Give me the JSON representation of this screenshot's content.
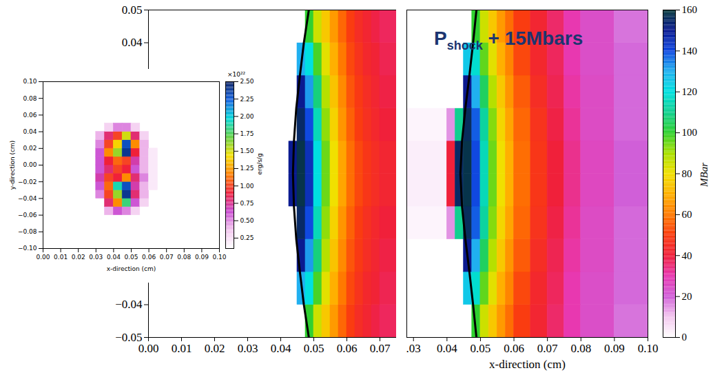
{
  "chart_data": [
    {
      "type": "heatmap",
      "xlim": [
        0,
        0.075
      ],
      "ylim": [
        -0.05,
        0.05
      ],
      "xticks": [
        {
          "value": 0,
          "label": "0.00"
        },
        {
          "value": 0.01,
          "label": "0.01"
        },
        {
          "value": 0.02,
          "label": "0.02"
        },
        {
          "value": 0.03,
          "label": "0.03"
        },
        {
          "value": 0.04,
          "label": "0.04"
        },
        {
          "value": 0.05,
          "label": "0.05"
        },
        {
          "value": 0.06,
          "label": "0.06"
        },
        {
          "value": 0.07,
          "label": "0.07"
        }
      ],
      "yticks": [
        {
          "value": -0.05,
          "label": "−0.05"
        },
        {
          "value": -0.04,
          "label": "−0.04"
        },
        {
          "value": 0.04,
          "label": "0.04"
        },
        {
          "value": 0.05,
          "label": "0.05"
        }
      ],
      "cells": {
        "x_edges": [
          0,
          0.0425,
          0.045,
          0.0475,
          0.05,
          0.0525,
          0.055,
          0.0575,
          0.06,
          0.0625,
          0.065,
          0.0675,
          0.07,
          0.075
        ],
        "y_edges": [
          -0.05,
          -0.04,
          -0.03,
          -0.02,
          -0.01,
          0,
          0.01,
          0.02,
          0.03,
          0.04,
          0.05
        ],
        "values": [
          [
            0,
            0,
            0,
            100,
            85,
            75,
            66,
            57,
            50,
            45,
            42,
            39,
            37
          ],
          [
            0,
            0,
            130,
            120,
            98,
            82,
            70,
            60,
            52,
            47,
            43,
            41,
            38
          ],
          [
            0,
            0,
            150,
            132,
            108,
            88,
            74,
            63,
            54,
            49,
            45,
            42,
            39
          ],
          [
            0,
            0,
            155,
            140,
            115,
            92,
            77,
            65,
            56,
            50,
            46,
            43,
            40
          ],
          [
            0,
            150,
            158,
            145,
            120,
            95,
            80,
            68,
            58,
            52,
            48,
            45,
            42
          ],
          [
            0,
            150,
            158,
            145,
            120,
            95,
            80,
            68,
            58,
            52,
            48,
            45,
            42
          ],
          [
            0,
            0,
            155,
            140,
            115,
            92,
            77,
            65,
            56,
            50,
            46,
            43,
            40
          ],
          [
            0,
            0,
            150,
            132,
            108,
            88,
            74,
            63,
            54,
            49,
            45,
            42,
            39
          ],
          [
            0,
            0,
            130,
            120,
            98,
            82,
            70,
            60,
            52,
            47,
            43,
            41,
            38
          ],
          [
            0,
            0,
            0,
            100,
            85,
            75,
            66,
            57,
            50,
            45,
            42,
            39,
            37
          ]
        ]
      },
      "front": {
        "x": [
          0.0485,
          0.047,
          0.0458,
          0.0447,
          0.044,
          0.0437,
          0.044,
          0.0447,
          0.0458,
          0.047,
          0.0485
        ],
        "y": [
          -0.05,
          -0.04,
          -0.03,
          -0.02,
          -0.01,
          0,
          0.01,
          0.02,
          0.03,
          0.04,
          0.05
        ]
      }
    },
    {
      "type": "heatmap",
      "xlim": [
        0.028,
        0.1
      ],
      "ylim": [
        -0.05,
        0.05
      ],
      "tick_labels": "x",
      "xlabel": "x-direction (cm)",
      "xticks": [
        {
          "value": 0.03,
          "label": ".03"
        },
        {
          "value": 0.04,
          "label": "0.04"
        },
        {
          "value": 0.05,
          "label": "0.05"
        },
        {
          "value": 0.06,
          "label": "0.06"
        },
        {
          "value": 0.07,
          "label": "0.07"
        },
        {
          "value": 0.08,
          "label": "0.08"
        },
        {
          "value": 0.09,
          "label": "0.09"
        },
        {
          "value": 0.1,
          "label": "0.10"
        }
      ],
      "annotation": {
        "text": "P",
        "subscript": "shock",
        "suffix": " + 15Mbars"
      },
      "cells": {
        "x_edges": [
          0.028,
          0.04,
          0.0425,
          0.045,
          0.0475,
          0.05,
          0.0525,
          0.055,
          0.0575,
          0.06,
          0.065,
          0.07,
          0.075,
          0.08,
          0.09,
          0.1
        ],
        "y_edges": [
          -0.05,
          -0.04,
          -0.03,
          -0.02,
          -0.01,
          0,
          0.01,
          0.02,
          0.03,
          0.04,
          0.05
        ],
        "values": [
          [
            0,
            0,
            0,
            0,
            100,
            85,
            75,
            66,
            58,
            50,
            42,
            36,
            30,
            24,
            18
          ],
          [
            0,
            0,
            0,
            125,
            118,
            96,
            82,
            70,
            62,
            52,
            43,
            37,
            30,
            24,
            19
          ],
          [
            0,
            0,
            0,
            150,
            130,
            105,
            88,
            75,
            65,
            55,
            45,
            38,
            31,
            25,
            19
          ],
          [
            2,
            15,
            110,
            156,
            138,
            112,
            93,
            78,
            68,
            57,
            47,
            39,
            32,
            25,
            19
          ],
          [
            3,
            40,
            155,
            158,
            140,
            115,
            95,
            80,
            70,
            58,
            48,
            40,
            33,
            26,
            20
          ],
          [
            3,
            40,
            155,
            158,
            140,
            115,
            95,
            80,
            70,
            58,
            48,
            40,
            33,
            26,
            20
          ],
          [
            2,
            15,
            110,
            156,
            138,
            112,
            93,
            78,
            68,
            57,
            47,
            39,
            32,
            25,
            19
          ],
          [
            0,
            0,
            0,
            150,
            130,
            105,
            88,
            75,
            65,
            55,
            45,
            38,
            31,
            25,
            19
          ],
          [
            0,
            0,
            0,
            125,
            118,
            96,
            82,
            70,
            62,
            52,
            43,
            37,
            30,
            24,
            19
          ],
          [
            0,
            0,
            0,
            0,
            100,
            85,
            75,
            66,
            58,
            50,
            42,
            36,
            30,
            24,
            18
          ]
        ]
      },
      "front": {
        "x": [
          0.0488,
          0.0478,
          0.0467,
          0.0455,
          0.0445,
          0.044,
          0.0445,
          0.0455,
          0.0467,
          0.0478,
          0.0488
        ],
        "y": [
          -0.05,
          -0.04,
          -0.03,
          -0.02,
          -0.01,
          0,
          0.01,
          0.02,
          0.03,
          0.04,
          0.05
        ]
      },
      "colorbar": {
        "lim": [
          0,
          160
        ],
        "ticks": [
          0,
          20,
          40,
          60,
          80,
          100,
          120,
          140,
          160
        ],
        "label": "MBar"
      }
    },
    {
      "type": "heatmap",
      "xlim": [
        0,
        0.1
      ],
      "ylim": [
        -0.1,
        0.1
      ],
      "xlabel": "x-direction (cm)",
      "ylabel": "y-direction (cm)",
      "xticks": [
        {
          "value": 0,
          "label": "0.00"
        },
        {
          "value": 0.01,
          "label": "0.01"
        },
        {
          "value": 0.02,
          "label": "0.02"
        },
        {
          "value": 0.03,
          "label": "0.03"
        },
        {
          "value": 0.04,
          "label": "0.04"
        },
        {
          "value": 0.05,
          "label": "0.05"
        },
        {
          "value": 0.06,
          "label": "0.06"
        },
        {
          "value": 0.07,
          "label": "0.07"
        },
        {
          "value": 0.08,
          "label": "0.08"
        },
        {
          "value": 0.09,
          "label": "0.09"
        },
        {
          "value": 0.1,
          "label": "0.10"
        }
      ],
      "yticks": [
        {
          "value": -0.1,
          "label": "−0.10"
        },
        {
          "value": -0.08,
          "label": "−0.08"
        },
        {
          "value": -0.06,
          "label": "−0.06"
        },
        {
          "value": -0.04,
          "label": "−0.04"
        },
        {
          "value": -0.02,
          "label": "−0.02"
        },
        {
          "value": 0,
          "label": "0.00"
        },
        {
          "value": 0.02,
          "label": "0.02"
        },
        {
          "value": 0.04,
          "label": "0.04"
        },
        {
          "value": 0.06,
          "label": "0.06"
        },
        {
          "value": 0.08,
          "label": "0.08"
        },
        {
          "value": 0.1,
          "label": "0.10"
        }
      ],
      "cells": {
        "x_edges": [
          0.03,
          0.035,
          0.04,
          0.045,
          0.05,
          0.055,
          0.06,
          0.065
        ],
        "y_edges": [
          -0.06,
          -0.05,
          -0.04,
          -0.03,
          -0.02,
          -0.01,
          0,
          0.01,
          0.02,
          0.03,
          0.04,
          0.05
        ],
        "values": [
          [
            null,
            0.4,
            0.6,
            0.5,
            0.3,
            null,
            null
          ],
          [
            null,
            0.8,
            1.2,
            1.8,
            0.6,
            0.3,
            null
          ],
          [
            0.5,
            1.0,
            1.6,
            2.4,
            0.8,
            0.4,
            null
          ],
          [
            0.6,
            1.1,
            1.9,
            2.3,
            0.7,
            0.4,
            0.2
          ],
          [
            0.7,
            1.0,
            0.9,
            1.2,
            0.8,
            0.5,
            0.2
          ],
          [
            0.6,
            0.8,
            1.0,
            0.9,
            0.6,
            0.4,
            0.2
          ],
          [
            0.6,
            0.9,
            1.1,
            1.0,
            0.7,
            0.4,
            0.2
          ],
          [
            0.6,
            1.2,
            1.6,
            2.4,
            0.9,
            0.4,
            0.2
          ],
          [
            0.5,
            1.0,
            1.4,
            2.3,
            1.2,
            0.4,
            null
          ],
          [
            0.4,
            0.8,
            1.0,
            1.5,
            0.8,
            0.3,
            null
          ],
          [
            null,
            0.3,
            0.5,
            0.5,
            0.3,
            null,
            null
          ]
        ]
      },
      "colorbar": {
        "lim": [
          0.1,
          2.5
        ],
        "ticks": [
          {
            "value": 0.25,
            "label": "0.25"
          },
          {
            "value": 0.5,
            "label": "0.50"
          },
          {
            "value": 0.75,
            "label": "0.75"
          },
          {
            "value": 1,
            "label": "1.00"
          },
          {
            "value": 1.25,
            "label": "1.25"
          },
          {
            "value": 1.5,
            "label": "1.50"
          },
          {
            "value": 1.75,
            "label": "1.75"
          },
          {
            "value": 2,
            "label": "2.00"
          },
          {
            "value": 2.25,
            "label": "2.25"
          },
          {
            "value": 2.5,
            "label": "2.50"
          }
        ],
        "label": "erg/s/g",
        "offset_label": "×10²²"
      }
    }
  ]
}
